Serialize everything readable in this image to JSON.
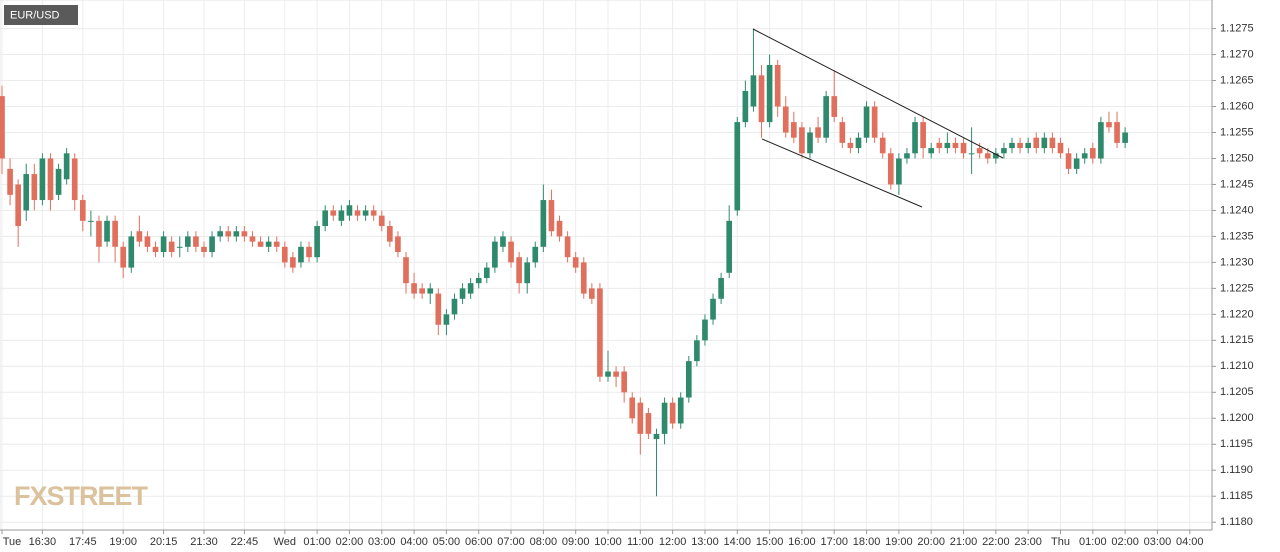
{
  "chart_data": {
    "type": "candlestick",
    "title": "EUR/USD",
    "watermark": "FXSTREET",
    "up_color": "#2f8a6d",
    "down_color": "#e0705d",
    "grid": true,
    "x": [
      "Tue 15:15",
      "Tue 15:30",
      "Tue 15:45",
      "Tue 16:00",
      "Tue 16:15",
      "Tue 16:30",
      "Tue 16:45",
      "Tue 17:00",
      "Tue 17:15",
      "Tue 17:30",
      "Tue 17:45",
      "Tue 18:00",
      "Tue 18:15",
      "Tue 18:30",
      "Tue 18:45",
      "Tue 19:00",
      "Tue 19:15",
      "Tue 19:30",
      "Tue 19:45",
      "Tue 20:00",
      "Tue 20:15",
      "Tue 20:30",
      "Tue 20:45",
      "Tue 21:00",
      "Tue 21:15",
      "Tue 21:30",
      "Tue 21:45",
      "Tue 22:00",
      "Tue 22:15",
      "Tue 22:30",
      "Tue 22:45",
      "Tue 23:00",
      "Tue 23:15",
      "Tue 23:30",
      "Tue 23:45",
      "Wed 00:00",
      "Wed 00:15",
      "Wed 00:30",
      "Wed 00:45",
      "Wed 01:00",
      "Wed 01:15",
      "Wed 01:30",
      "Wed 01:45",
      "Wed 02:00",
      "Wed 02:15",
      "Wed 02:30",
      "Wed 02:45",
      "Wed 03:00",
      "Wed 03:15",
      "Wed 03:30",
      "Wed 03:45",
      "Wed 04:00",
      "Wed 04:15",
      "Wed 04:30",
      "Wed 04:45",
      "Wed 05:00",
      "Wed 05:15",
      "Wed 05:30",
      "Wed 05:45",
      "Wed 06:00",
      "Wed 06:15",
      "Wed 06:30",
      "Wed 06:45",
      "Wed 07:00",
      "Wed 07:15",
      "Wed 07:30",
      "Wed 07:45",
      "Wed 08:00",
      "Wed 08:15",
      "Wed 08:30",
      "Wed 08:45",
      "Wed 09:00",
      "Wed 09:15",
      "Wed 09:30",
      "Wed 09:45",
      "Wed 10:00",
      "Wed 10:15",
      "Wed 10:30",
      "Wed 10:45",
      "Wed 11:00",
      "Wed 11:15",
      "Wed 11:30",
      "Wed 11:45",
      "Wed 12:00",
      "Wed 12:15",
      "Wed 12:30",
      "Wed 12:45",
      "Wed 13:00",
      "Wed 13:15",
      "Wed 13:30",
      "Wed 13:45",
      "Wed 14:00",
      "Wed 14:15",
      "Wed 14:30",
      "Wed 14:45",
      "Wed 15:00",
      "Wed 15:15",
      "Wed 15:30",
      "Wed 15:45",
      "Wed 16:00",
      "Wed 16:15",
      "Wed 16:30",
      "Wed 16:45",
      "Wed 17:00",
      "Wed 17:15",
      "Wed 17:30",
      "Wed 17:45",
      "Wed 18:00",
      "Wed 18:15",
      "Wed 18:30",
      "Wed 18:45",
      "Wed 19:00",
      "Wed 19:15",
      "Wed 19:30",
      "Wed 19:45",
      "Wed 20:00",
      "Wed 20:15",
      "Wed 20:30",
      "Wed 20:45",
      "Wed 21:00",
      "Wed 21:15",
      "Wed 21:30",
      "Wed 21:45",
      "Wed 22:00",
      "Wed 22:15",
      "Wed 22:30",
      "Wed 22:45",
      "Wed 23:00",
      "Wed 23:15",
      "Wed 23:30",
      "Wed 23:45",
      "Thu 00:00",
      "Thu 00:15",
      "Thu 00:30",
      "Thu 00:45",
      "Thu 01:00",
      "Thu 01:15",
      "Thu 01:30",
      "Thu 01:45",
      "Thu 02:00",
      "Thu 02:15",
      "Thu 02:30",
      "Thu 02:45",
      "Thu 03:00",
      "Thu 03:15",
      "Thu 03:30",
      "Thu 03:45",
      "Thu 04:00",
      "Thu 04:15",
      "Thu 04:30"
    ],
    "open": [
      1.1262,
      1.1248,
      1.1245,
      1.124,
      1.1247,
      1.1242,
      1.125,
      1.1243,
      1.1246,
      1.125,
      1.1242,
      1.1238,
      1.1238,
      1.1234,
      1.1238,
      1.1233,
      1.1229,
      1.1236,
      1.1235,
      1.1233,
      1.1232,
      1.1234,
      1.1233,
      1.1233,
      1.1235,
      1.1233,
      1.1232,
      1.1235,
      1.1236,
      1.1235,
      1.1236,
      1.1235,
      1.1234,
      1.1233,
      1.1234,
      1.1233,
      1.1231,
      1.123,
      1.1233,
      1.1231,
      1.1237,
      1.124,
      1.1238,
      1.1239,
      1.124,
      1.1239,
      1.124,
      1.1239,
      1.1237,
      1.1235,
      1.1231,
      1.1226,
      1.1225,
      1.1224,
      1.1224,
      1.1218,
      1.122,
      1.1223,
      1.1224,
      1.1226,
      1.1227,
      1.1229,
      1.1233,
      1.1234,
      1.1231,
      1.1226,
      1.123,
      1.1233,
      1.1242,
      1.1238,
      1.1235,
      1.1231,
      1.123,
      1.1225,
      1.1225,
      1.1208,
      1.1209,
      1.1209,
      1.1204,
      1.1203,
      1.1201,
      1.1196,
      1.1197,
      1.1203,
      1.1199,
      1.1204,
      1.1211,
      1.1215,
      1.1219,
      1.1223,
      1.1228,
      1.124,
      1.1257,
      1.126,
      1.1266,
      1.1257,
      1.1268,
      1.126,
      1.1257,
      1.1256,
      1.1251,
      1.1256,
      1.1254,
      1.1262,
      1.1257,
      1.1253,
      1.1252,
      1.1254,
      1.126,
      1.1254,
      1.1251,
      1.1245,
      1.125,
      1.1251,
      1.1257,
      1.1251,
      1.1253,
      1.1252,
      1.1253,
      1.1253,
      1.1251,
      1.1252,
      1.1251,
      1.125,
      1.1251,
      1.1252,
      1.1253,
      1.1252,
      1.1254,
      1.1252,
      1.1254,
      1.1253,
      1.1251,
      1.1248,
      1.125,
      1.1252,
      1.125,
      1.1257,
      1.1257,
      1.1253,
      null,
      null,
      null,
      null,
      null,
      null,
      null,
      null,
      null,
      null
    ],
    "high": [
      1.1264,
      1.125,
      1.1246,
      1.1249,
      1.1249,
      1.1251,
      1.1251,
      1.1249,
      1.1252,
      1.1251,
      1.1243,
      1.124,
      1.1239,
      1.1239,
      1.1239,
      1.1234,
      1.1236,
      1.1239,
      1.1236,
      1.1234,
      1.1236,
      1.1235,
      1.1235,
      1.1236,
      1.1236,
      1.1234,
      1.1236,
      1.1237,
      1.1237,
      1.1237,
      1.1237,
      1.1236,
      1.1235,
      1.1235,
      1.1235,
      1.1234,
      1.1232,
      1.1234,
      1.1234,
      1.1238,
      1.1241,
      1.1241,
      1.1241,
      1.1242,
      1.1241,
      1.1241,
      1.1241,
      1.124,
      1.1238,
      1.1236,
      1.1232,
      1.1228,
      1.1226,
      1.1226,
      1.1225,
      1.1221,
      1.1224,
      1.1226,
      1.1227,
      1.1228,
      1.123,
      1.1235,
      1.1236,
      1.1235,
      1.1232,
      1.1231,
      1.1234,
      1.1245,
      1.1244,
      1.1239,
      1.1236,
      1.1232,
      1.1231,
      1.1226,
      1.1226,
      1.1213,
      1.121,
      1.121,
      1.1205,
      1.1204,
      1.1202,
      1.1198,
      1.1204,
      1.1204,
      1.1205,
      1.1212,
      1.1216,
      1.122,
      1.1224,
      1.1228,
      1.1241,
      1.1258,
      1.1265,
      1.1275,
      1.1268,
      1.127,
      1.1269,
      1.1262,
      1.1259,
      1.1257,
      1.1256,
      1.1258,
      1.1263,
      1.1267,
      1.1258,
      1.1254,
      1.1255,
      1.1261,
      1.1261,
      1.1255,
      1.1252,
      1.1251,
      1.1252,
      1.1258,
      1.1258,
      1.1253,
      1.1254,
      1.1255,
      1.1254,
      1.1254,
      1.1256,
      1.1253,
      1.1252,
      1.1252,
      1.1253,
      1.1254,
      1.1254,
      1.1254,
      1.1255,
      1.1255,
      1.1255,
      1.1254,
      1.1252,
      1.1251,
      1.1252,
      1.1253,
      1.1258,
      1.1259,
      1.1259,
      1.1256,
      null,
      null,
      null,
      null,
      null,
      null,
      null,
      null,
      null,
      null
    ],
    "low": [
      1.1247,
      1.1241,
      1.1233,
      1.1238,
      1.124,
      1.1241,
      1.124,
      1.1242,
      1.1245,
      1.124,
      1.1236,
      1.1235,
      1.123,
      1.1233,
      1.123,
      1.1227,
      1.1228,
      1.1233,
      1.1232,
      1.1231,
      1.1231,
      1.1231,
      1.1231,
      1.1232,
      1.1232,
      1.1231,
      1.1231,
      1.1234,
      1.1234,
      1.1234,
      1.1234,
      1.1233,
      1.1233,
      1.1232,
      1.1232,
      1.1229,
      1.1228,
      1.1229,
      1.123,
      1.123,
      1.1236,
      1.1238,
      1.1237,
      1.1238,
      1.1238,
      1.1238,
      1.1238,
      1.1236,
      1.1233,
      1.1231,
      1.1224,
      1.1223,
      1.1223,
      1.1222,
      1.1216,
      1.1216,
      1.1219,
      1.1222,
      1.1223,
      1.1225,
      1.1226,
      1.1228,
      1.1232,
      1.1229,
      1.1224,
      1.1224,
      1.1229,
      1.1232,
      1.1235,
      1.1234,
      1.123,
      1.1228,
      1.1223,
      1.1222,
      1.1207,
      1.1207,
      1.1206,
      1.1203,
      1.1199,
      1.1193,
      1.1196,
      1.1185,
      1.1195,
      1.1198,
      1.1198,
      1.1203,
      1.121,
      1.1214,
      1.1218,
      1.1222,
      1.1227,
      1.1239,
      1.1256,
      1.1259,
      1.1254,
      1.1256,
      1.1258,
      1.1254,
      1.1253,
      1.125,
      1.125,
      1.1253,
      1.1253,
      1.1257,
      1.1252,
      1.1251,
      1.1251,
      1.1253,
      1.1253,
      1.125,
      1.1244,
      1.1243,
      1.1249,
      1.125,
      1.125,
      1.125,
      1.1251,
      1.1251,
      1.1251,
      1.125,
      1.1247,
      1.125,
      1.1249,
      1.1249,
      1.125,
      1.1251,
      1.1251,
      1.1251,
      1.1251,
      1.1251,
      1.1251,
      1.125,
      1.1247,
      1.1247,
      1.1249,
      1.1249,
      1.1249,
      1.1255,
      1.1252,
      1.1252,
      null,
      null,
      null,
      null,
      null,
      null,
      null,
      null,
      null,
      null
    ],
    "close": [
      1.125,
      1.1243,
      1.1237,
      1.1247,
      1.1242,
      1.125,
      1.1242,
      1.1248,
      1.1251,
      1.1242,
      1.1238,
      1.1238,
      1.1233,
      1.1238,
      1.1233,
      1.1229,
      1.1235,
      1.1234,
      1.1233,
      1.1232,
      1.1235,
      1.1232,
      1.1233,
      1.1235,
      1.1233,
      1.1232,
      1.1235,
      1.1236,
      1.1235,
      1.1236,
      1.1235,
      1.1234,
      1.1233,
      1.1234,
      1.1233,
      1.123,
      1.1229,
      1.1233,
      1.1231,
      1.1237,
      1.124,
      1.1239,
      1.124,
      1.1241,
      1.1239,
      1.124,
      1.1239,
      1.1237,
      1.1234,
      1.1232,
      1.1226,
      1.1224,
      1.1224,
      1.1225,
      1.1218,
      1.122,
      1.1223,
      1.1225,
      1.1226,
      1.1227,
      1.1229,
      1.1234,
      1.1235,
      1.123,
      1.1226,
      1.123,
      1.1233,
      1.1242,
      1.1236,
      1.1235,
      1.1231,
      1.1229,
      1.1224,
      1.1223,
      1.1208,
      1.1209,
      1.1208,
      1.1205,
      1.12,
      1.1197,
      1.1197,
      1.1197,
      1.1203,
      1.1199,
      1.1204,
      1.1211,
      1.1215,
      1.1219,
      1.1223,
      1.1227,
      1.1238,
      1.1257,
      1.1263,
      1.1266,
      1.1257,
      1.1268,
      1.126,
      1.1255,
      1.1254,
      1.1251,
      1.1255,
      1.1254,
      1.1262,
      1.1258,
      1.1253,
      1.1252,
      1.1254,
      1.126,
      1.1254,
      1.1251,
      1.1245,
      1.125,
      1.1251,
      1.1257,
      1.1252,
      1.1252,
      1.1252,
      1.1253,
      1.1252,
      1.1251,
      1.1251,
      1.1251,
      1.125,
      1.1251,
      1.1252,
      1.1253,
      1.1252,
      1.1253,
      1.1252,
      1.1254,
      1.1252,
      1.1251,
      1.1248,
      1.125,
      1.1251,
      1.125,
      1.1257,
      1.1256,
      1.1253,
      1.1255,
      null,
      null,
      null,
      null,
      null,
      null,
      null,
      null,
      null,
      null
    ],
    "ylim": [
      1.11785,
      1.12805
    ],
    "yticks": [
      {
        "value": 1.118,
        "label": "1.1180"
      },
      1.1185,
      {
        "value": 1.119,
        "label": "1.1190"
      },
      1.1195,
      {
        "value": 1.12,
        "label": "1.1200"
      },
      1.1205,
      {
        "value": 1.121,
        "label": "1.1210"
      },
      1.1215,
      {
        "value": 1.122,
        "label": "1.1220"
      },
      1.1225,
      {
        "value": 1.123,
        "label": "1.1230"
      },
      1.1235,
      {
        "value": 1.124,
        "label": "1.1240"
      },
      1.1245,
      {
        "value": 1.125,
        "label": "1.1250"
      },
      1.1255,
      {
        "value": 1.126,
        "label": "1.1260"
      },
      1.1265,
      {
        "value": 1.127,
        "label": "1.1270"
      },
      1.1275
    ],
    "xticks": [
      {
        "value": "Tue 15:15",
        "label": "Tue"
      },
      {
        "value": "Tue 16:30",
        "label": "16:30"
      },
      {
        "value": "Tue 17:45",
        "label": "17:45"
      },
      {
        "value": "Tue 19:00",
        "label": "19:00"
      },
      {
        "value": "Tue 20:15",
        "label": "20:15"
      },
      {
        "value": "Tue 21:30",
        "label": "21:30"
      },
      {
        "value": "Tue 22:45",
        "label": "22:45"
      },
      {
        "value": "Wed 00:00",
        "label": "Wed"
      },
      {
        "value": "Wed 01:00",
        "label": "01:00"
      },
      {
        "value": "Wed 02:00",
        "label": "02:00"
      },
      {
        "value": "Wed 03:00",
        "label": "03:00"
      },
      {
        "value": "Wed 04:00",
        "label": "04:00"
      },
      {
        "value": "Wed 05:00",
        "label": "05:00"
      },
      {
        "value": "Wed 06:00",
        "label": "06:00"
      },
      {
        "value": "Wed 07:00",
        "label": "07:00"
      },
      {
        "value": "Wed 08:00",
        "label": "08:00"
      },
      {
        "value": "Wed 09:00",
        "label": "09:00"
      },
      {
        "value": "Wed 10:00",
        "label": "10:00"
      },
      {
        "value": "Wed 11:00",
        "label": "11:00"
      },
      {
        "value": "Wed 12:00",
        "label": "12:00"
      },
      {
        "value": "Wed 13:00",
        "label": "13:00"
      },
      {
        "value": "Wed 14:00",
        "label": "14:00"
      },
      {
        "value": "Wed 15:00",
        "label": "15:00"
      },
      {
        "value": "Wed 16:00",
        "label": "16:00"
      },
      {
        "value": "Wed 17:00",
        "label": "17:00"
      },
      {
        "value": "Wed 18:00",
        "label": "18:00"
      },
      {
        "value": "Wed 19:00",
        "label": "19:00"
      },
      {
        "value": "Wed 20:00",
        "label": "20:00"
      },
      {
        "value": "Wed 21:00",
        "label": "21:00"
      },
      {
        "value": "Wed 22:00",
        "label": "22:00"
      },
      {
        "value": "Wed 23:00",
        "label": "23:00"
      },
      {
        "value": "Thu 00:00",
        "label": "Thu"
      },
      {
        "value": "Thu 01:00",
        "label": "01:00"
      },
      {
        "value": "Thu 02:00",
        "label": "02:00"
      },
      {
        "value": "Thu 03:00",
        "label": "03:00"
      },
      {
        "value": "Thu 04:00",
        "label": "04:00"
      }
    ]
  }
}
